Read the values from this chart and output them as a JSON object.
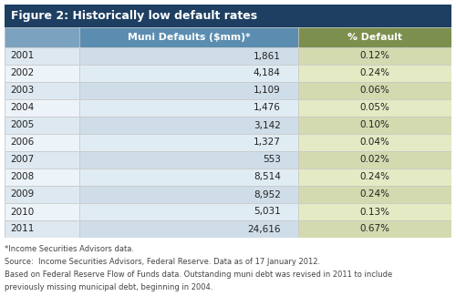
{
  "title": "Figure 2: Historically low default rates",
  "col_headers": [
    "Muni Defaults ($mm)*",
    "% Default"
  ],
  "years": [
    "2001",
    "2002",
    "2003",
    "2004",
    "2005",
    "2006",
    "2007",
    "2008",
    "2009",
    "2010",
    "2011"
  ],
  "muni_defaults": [
    "1,861",
    "4,184",
    "1,109",
    "1,476",
    "3,142",
    "1,327",
    "553",
    "8,514",
    "8,952",
    "5,031",
    "24,616"
  ],
  "pct_default": [
    "0.12%",
    "0.24%",
    "0.06%",
    "0.05%",
    "0.10%",
    "0.04%",
    "0.02%",
    "0.24%",
    "0.24%",
    "0.13%",
    "0.67%"
  ],
  "title_bg": "#1e3f62",
  "title_fg": "#ffffff",
  "header_muni_bg": "#5b8db0",
  "header_pct_bg": "#7d8f4e",
  "header_year_bg": "#7ba3c0",
  "row_muni_even": "#cfdde8",
  "row_muni_odd": "#e0ecf4",
  "row_pct_even": "#d4dab0",
  "row_pct_odd": "#e4eac4",
  "row_year_even": "#dde8f0",
  "row_year_odd": "#edf4f9",
  "text_dark": "#222222",
  "header_text_color": "#ffffff",
  "footer_color": "#444444",
  "footer_lines": [
    "*Income Securities Advisors data.",
    "Source:  Income Securities Advisors, Federal Reserve. Data as of 17 January 2012.",
    "Based on Federal Reserve Flow of Funds data. Outstanding muni debt was revised in 2011 to include",
    "previously missing municipal debt, beginning in 2004."
  ]
}
